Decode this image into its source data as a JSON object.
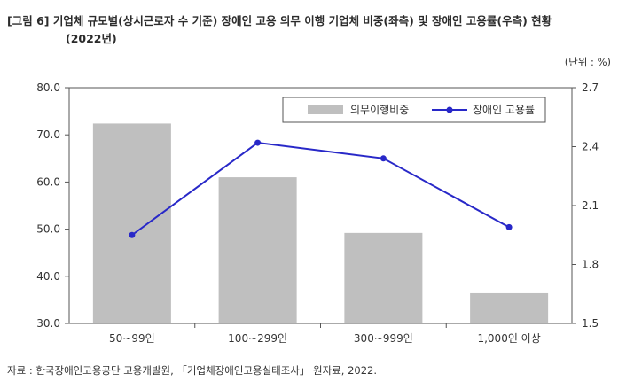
{
  "title_line1": "[그림 6] 기업체 규모별(상시근로자 수 기준) 장애인 고용 의무 이행 기업체 비중(좌측) 및 장애인 고용률(우측) 현황",
  "title_line2": "(2022년)",
  "unit": "(단위 : %)",
  "source": "자료 : 한국장애인고용공단 고용개발원, 「기업체장애인고용실태조사」 원자료, 2022.",
  "chart_data": {
    "type": "bar",
    "categories": [
      "50~99인",
      "100~299인",
      "300~999인",
      "1,000인 이상"
    ],
    "series": [
      {
        "name": "의무이행비중",
        "type": "bar",
        "axis": "left",
        "color": "#bfbfbf",
        "values": [
          72.4,
          61.0,
          49.2,
          36.4
        ]
      },
      {
        "name": "장애인 고용률",
        "type": "line",
        "axis": "right",
        "color": "#2828c8",
        "values": [
          1.95,
          2.42,
          2.34,
          1.99
        ]
      }
    ],
    "ylim_left": [
      30.0,
      80.0
    ],
    "yticks_left": [
      "30.0",
      "40.0",
      "50.0",
      "60.0",
      "70.0",
      "80.0"
    ],
    "ylim_right": [
      1.5,
      2.7
    ],
    "yticks_right": [
      "1.5",
      "1.8",
      "2.1",
      "2.4",
      "2.7"
    ],
    "legend_position": "top-right",
    "grid": false
  }
}
